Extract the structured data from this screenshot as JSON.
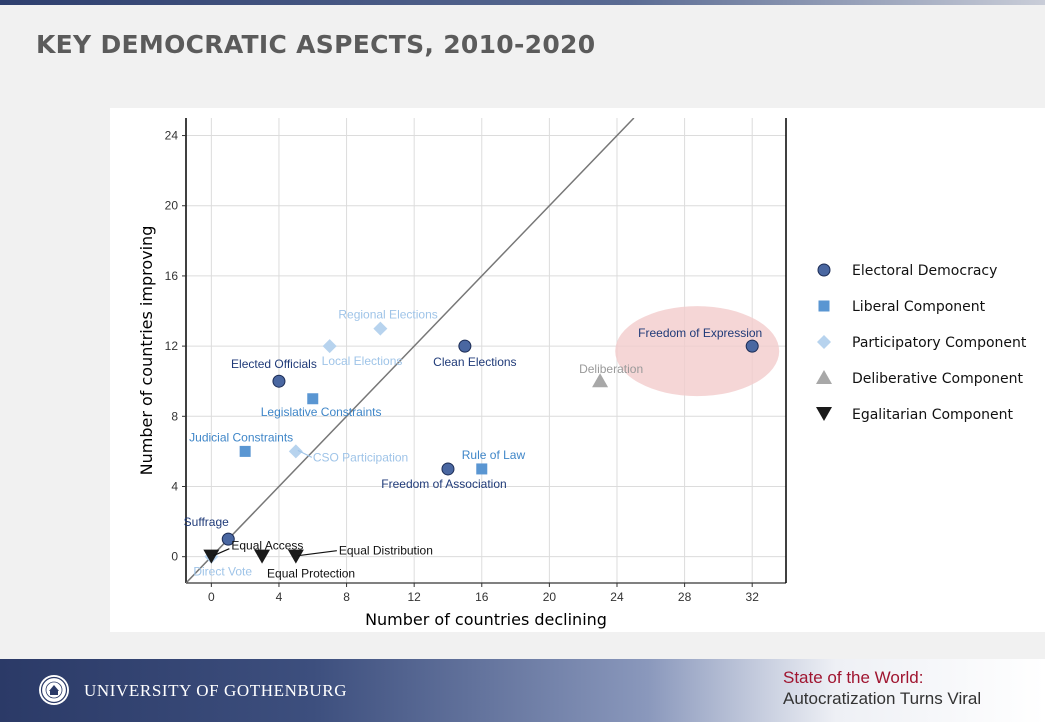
{
  "slide": {
    "title": "KEY DEMOCRATIC ASPECTS, 2010-2020"
  },
  "footer": {
    "university": "UNIVERSITY OF GOTHENBURG",
    "line1": "State of the World:",
    "line2": "Autocratization Turns Viral",
    "seal_icon": "university-seal-icon"
  },
  "colors": {
    "electoral": "#4a67a1",
    "liberal": "#5a96d2",
    "participatory": "#b7d3ee",
    "deliberative": "#a8a8a8",
    "egalitarian": "#1a1a1a",
    "highlight": "#f3cccc"
  },
  "chart_data": {
    "type": "scatter",
    "xlabel": "Number of countries declining",
    "ylabel": "Number of countries improving",
    "xlim": [
      -1.5,
      34
    ],
    "ylim": [
      -1.5,
      25
    ],
    "xticks": [
      0,
      4,
      8,
      12,
      16,
      20,
      24,
      28,
      32
    ],
    "yticks": [
      0,
      4,
      8,
      12,
      16,
      20,
      24
    ],
    "grid": true,
    "reference_line": "y = x",
    "legend_position": "right",
    "highlight": {
      "label": "Freedom of Expression",
      "shape": "ellipse"
    },
    "series": [
      {
        "name": "Electoral Democracy",
        "marker": "circle",
        "color": "#4a67a1",
        "label_color": "#1f3a78",
        "points": [
          {
            "label": "Elected Officials",
            "x": 4,
            "y": 10
          },
          {
            "label": "Clean Elections",
            "x": 15,
            "y": 12
          },
          {
            "label": "Freedom of Association",
            "x": 14,
            "y": 5
          },
          {
            "label": "Suffrage",
            "x": 1,
            "y": 1
          },
          {
            "label": "Freedom of Expression",
            "x": 32,
            "y": 12
          }
        ]
      },
      {
        "name": "Liberal Component",
        "marker": "square",
        "color": "#5a96d2",
        "label_color": "#3f86c8",
        "points": [
          {
            "label": "Legislative Constraints",
            "x": 6,
            "y": 9
          },
          {
            "label": "Judicial Constraints",
            "x": 2,
            "y": 6
          },
          {
            "label": "Rule of Law",
            "x": 16,
            "y": 5
          }
        ]
      },
      {
        "name": "Participatory Component",
        "marker": "diamond",
        "color": "#b7d3ee",
        "label_color": "#9fc4e8",
        "points": [
          {
            "label": "Regional Elections",
            "x": 10,
            "y": 13
          },
          {
            "label": "Local Elections",
            "x": 7,
            "y": 12
          },
          {
            "label": "CSO Participation",
            "x": 5,
            "y": 6
          },
          {
            "label": "Direct Vote",
            "x": 0,
            "y": 0
          }
        ]
      },
      {
        "name": "Deliberative Component",
        "marker": "triangle",
        "color": "#a8a8a8",
        "label_color": "#9a9a9a",
        "points": [
          {
            "label": "Deliberation",
            "x": 23,
            "y": 10
          }
        ]
      },
      {
        "name": "Egalitarian Component",
        "marker": "triangle-down",
        "color": "#1a1a1a",
        "label_color": "#111111",
        "points": [
          {
            "label": "Equal Access",
            "x": 0,
            "y": 0
          },
          {
            "label": "Equal Protection",
            "x": 3,
            "y": 0
          },
          {
            "label": "Equal Distribution",
            "x": 5,
            "y": 0
          }
        ]
      }
    ]
  }
}
